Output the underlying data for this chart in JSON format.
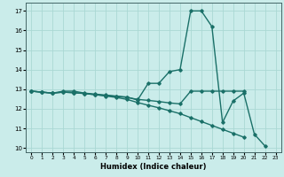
{
  "title": "",
  "xlabel": "Humidex (Indice chaleur)",
  "ylabel": "",
  "xlim": [
    -0.5,
    23.5
  ],
  "ylim": [
    9.8,
    17.4
  ],
  "yticks": [
    10,
    11,
    12,
    13,
    14,
    15,
    16,
    17
  ],
  "xticks": [
    0,
    1,
    2,
    3,
    4,
    5,
    6,
    7,
    8,
    9,
    10,
    11,
    12,
    13,
    14,
    15,
    16,
    17,
    18,
    19,
    20,
    21,
    22,
    23
  ],
  "bg_color": "#caecea",
  "grid_color": "#aad8d4",
  "line_color": "#1a7068",
  "line_width": 1.0,
  "marker": "D",
  "marker_size": 1.8,
  "series": [
    {
      "x": [
        0,
        1,
        2,
        3,
        4,
        5,
        6,
        7,
        8,
        9,
        10,
        11,
        12,
        13,
        14,
        15,
        16,
        17,
        18,
        19,
        20,
        21,
        22
      ],
      "y": [
        12.9,
        12.85,
        12.8,
        12.9,
        12.9,
        12.8,
        12.75,
        12.7,
        12.65,
        12.6,
        12.45,
        13.3,
        13.3,
        13.9,
        14.0,
        17.0,
        17.0,
        16.2,
        11.3,
        12.4,
        12.8,
        10.7,
        10.1
      ]
    },
    {
      "x": [
        0,
        1,
        2,
        3,
        4,
        5,
        6,
        7,
        8,
        9,
        10,
        11,
        12,
        13,
        14,
        15,
        16,
        17,
        18,
        19,
        20
      ],
      "y": [
        12.9,
        12.85,
        12.8,
        12.85,
        12.82,
        12.78,
        12.72,
        12.68,
        12.63,
        12.58,
        12.48,
        12.43,
        12.37,
        12.3,
        12.25,
        12.9,
        12.9,
        12.9,
        12.9,
        12.9,
        12.9
      ]
    },
    {
      "x": [
        0,
        1,
        2,
        3,
        4,
        5,
        6,
        7,
        8,
        9,
        10,
        11,
        12,
        13,
        14,
        15,
        16,
        17,
        18,
        19,
        20
      ],
      "y": [
        12.9,
        12.85,
        12.8,
        12.85,
        12.82,
        12.78,
        12.72,
        12.65,
        12.58,
        12.48,
        12.32,
        12.18,
        12.05,
        11.9,
        11.75,
        11.55,
        11.35,
        11.15,
        10.95,
        10.75,
        10.55
      ]
    }
  ]
}
